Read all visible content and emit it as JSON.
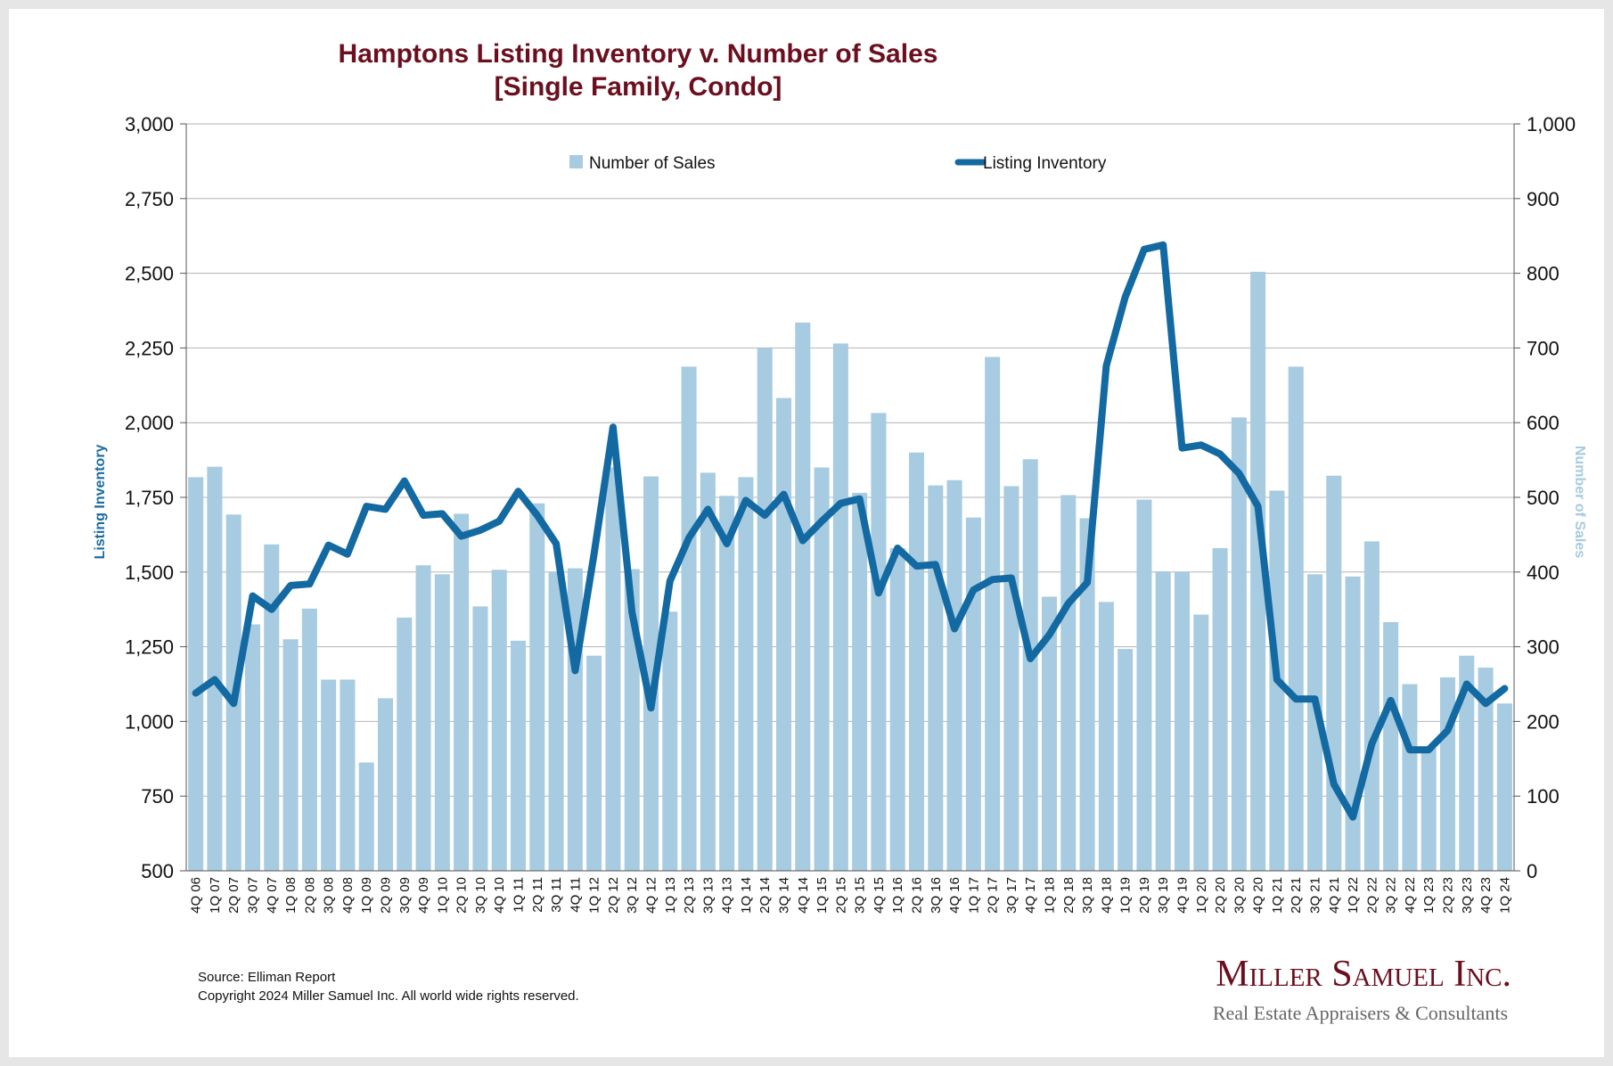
{
  "chart_data": {
    "type": "bar+line",
    "title_line1": "Hamptons Listing Inventory v. Number of Sales",
    "title_line2": "[Single Family, Condo]",
    "ylabel_left": "Listing Inventory",
    "ylabel_right": "Number of Sales",
    "ylim_left": [
      500,
      3000
    ],
    "ylim_right": [
      0,
      1000
    ],
    "yticks_left": [
      "500",
      "750",
      "1,000",
      "1,250",
      "1,500",
      "1,750",
      "2,000",
      "2,250",
      "2,500",
      "2,750",
      "3,000"
    ],
    "yticks_right": [
      "0",
      "100",
      "200",
      "300",
      "400",
      "500",
      "600",
      "700",
      "800",
      "900",
      "1,000"
    ],
    "legend": {
      "bars": "Number of Sales",
      "line": "Listing Inventory"
    },
    "colors": {
      "bars": "#a7cbe0",
      "line": "#1369a1",
      "grid": "#b3b3b3",
      "title": "#6b0f1f"
    },
    "categories": [
      "4Q 06",
      "1Q 07",
      "2Q 07",
      "3Q 07",
      "4Q 07",
      "1Q 08",
      "2Q 08",
      "3Q 08",
      "4Q 08",
      "1Q 09",
      "2Q 09",
      "3Q 09",
      "4Q 09",
      "1Q 10",
      "2Q 10",
      "3Q 10",
      "4Q 10",
      "1Q 11",
      "2Q 11",
      "3Q 11",
      "4Q 11",
      "1Q 12",
      "2Q 12",
      "3Q 12",
      "4Q 12",
      "1Q 13",
      "2Q 13",
      "3Q 13",
      "4Q 13",
      "1Q 14",
      "2Q 14",
      "3Q 14",
      "4Q 14",
      "1Q 15",
      "2Q 15",
      "3Q 15",
      "4Q 15",
      "1Q 16",
      "2Q 16",
      "3Q 16",
      "4Q 16",
      "1Q 17",
      "2Q 17",
      "3Q 17",
      "4Q 17",
      "1Q 18",
      "2Q 18",
      "3Q 18",
      "4Q 18",
      "1Q 19",
      "2Q 19",
      "3Q 19",
      "4Q 19",
      "1Q 20",
      "2Q 20",
      "3Q 20",
      "4Q 20",
      "1Q 21",
      "2Q 21",
      "3Q 21",
      "4Q 21",
      "1Q 22",
      "2Q 22",
      "3Q 22",
      "4Q 22",
      "1Q 23",
      "2Q 23",
      "3Q 23",
      "4Q 23",
      "1Q 24"
    ],
    "sales": [
      527,
      541,
      477,
      330,
      437,
      310,
      351,
      256,
      256,
      145,
      231,
      339,
      409,
      397,
      478,
      354,
      403,
      308,
      492,
      400,
      405,
      288,
      540,
      404,
      528,
      347,
      675,
      533,
      502,
      527,
      700,
      633,
      734,
      540,
      706,
      506,
      613,
      432,
      560,
      516,
      523,
      473,
      688,
      515,
      551,
      367,
      503,
      472,
      360,
      297,
      497,
      401,
      400,
      343,
      432,
      607,
      802,
      509,
      675,
      397,
      529,
      394,
      441,
      333,
      250,
      164,
      259,
      288,
      272,
      224
    ],
    "inventory": [
      1095,
      1140,
      1060,
      1420,
      1375,
      1455,
      1460,
      1590,
      1560,
      1720,
      1710,
      1805,
      1690,
      1695,
      1620,
      1640,
      1670,
      1770,
      1690,
      1595,
      1170,
      1560,
      1985,
      1365,
      1045,
      1470,
      1615,
      1710,
      1595,
      1740,
      1690,
      1760,
      1605,
      1670,
      1730,
      1745,
      1430,
      1580,
      1520,
      1525,
      1310,
      1440,
      1475,
      1480,
      1210,
      1290,
      1395,
      1465,
      2190,
      2420,
      2580,
      2595,
      1915,
      1925,
      1895,
      1830,
      1720,
      1140,
      1075,
      1075,
      790,
      680,
      925,
      1070,
      905,
      905,
      970,
      1125,
      1060,
      1110
    ]
  },
  "footer": {
    "source": "Source: Elliman Report",
    "copyright": "Copyright 2024 Miller Samuel Inc.  All world wide rights reserved.",
    "brand_name": "Miller Samuel Inc.",
    "brand_tagline": "Real Estate Appraisers & Consultants"
  }
}
